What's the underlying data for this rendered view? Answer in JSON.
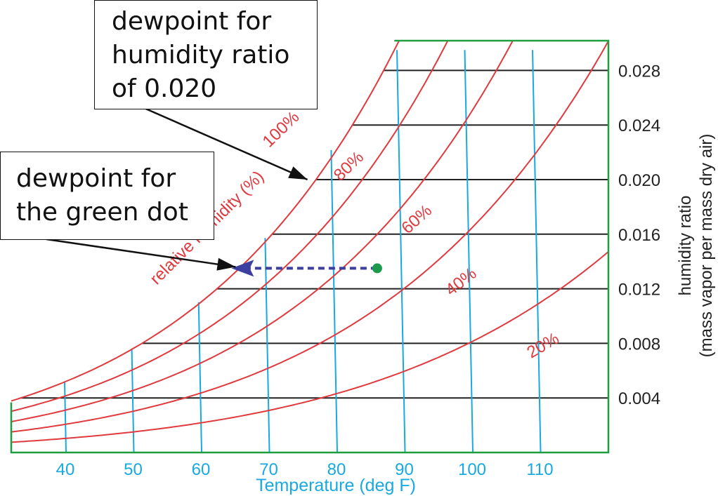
{
  "chart_data": {
    "type": "line",
    "title": "",
    "xlabel": "Temperature (deg F)",
    "ylabel": "humidity ratio (mass vapor per mass dry air)",
    "ylabel_lines": [
      "humidity ratio",
      "(mass vapor per mass dry air)"
    ],
    "xlim": [
      32,
      120
    ],
    "ylim": [
      0,
      0.0295
    ],
    "x_ticks": [
      40,
      50,
      60,
      70,
      80,
      90,
      100,
      110
    ],
    "y_ticks": [
      0.004,
      0.008,
      0.012,
      0.016,
      0.02,
      0.024,
      0.028
    ],
    "y_tick_labels": [
      "0.004",
      "0.008",
      "0.012",
      "0.016",
      "0.020",
      "0.024",
      "0.028"
    ],
    "x_tick_labels": [
      "40",
      "50",
      "60",
      "70",
      "80",
      "90",
      "100",
      "110"
    ],
    "grid": true,
    "series": [
      {
        "name": "100%",
        "rh": 1.0
      },
      {
        "name": "80%",
        "rh": 0.8
      },
      {
        "name": "60%",
        "rh": 0.6
      },
      {
        "name": "40%",
        "rh": 0.4
      },
      {
        "name": "20%",
        "rh": 0.2
      }
    ],
    "curve_axis_label": "relative humidity (%)",
    "point": {
      "x": 86,
      "y": 0.0135,
      "color": "#1a9a4a"
    },
    "dewpoint_arrow": {
      "from_x": 86,
      "to_x": 64.5,
      "y": 0.0135
    },
    "colors": {
      "rh_curves": "#e03a3e",
      "temperature_lines": "#19a9e1",
      "humidity_lines": "#222222",
      "frame": "#1e9e3e",
      "arrow": "#3b3fa0",
      "point": "#1a9a4a",
      "axis_text": "#222222",
      "temperature_text": "#19a9e1"
    }
  },
  "annotations": {
    "top": {
      "lines": [
        "dewpoint for",
        "humidity ratio",
        "of 0.020"
      ],
      "target_x": 75.5,
      "target_y": 0.02
    },
    "bottom": {
      "lines": [
        "dewpoint for",
        "the green dot"
      ],
      "target_x": 64.5,
      "target_y": 0.0135
    }
  }
}
